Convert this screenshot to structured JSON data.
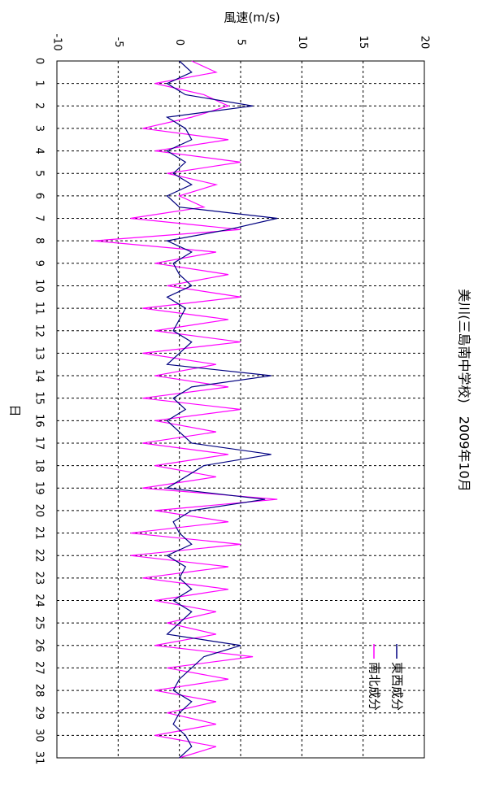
{
  "chart_data": {
    "type": "line",
    "title": "美川(三島南中学校)　2009年10月",
    "x_label": "日",
    "y_label": "風速(m/s)",
    "x": [
      0,
      0.5,
      1,
      1.5,
      2,
      2.5,
      3,
      3.5,
      4,
      4.5,
      5,
      5.5,
      6,
      6.5,
      7,
      7.5,
      8,
      8.5,
      9,
      9.5,
      10,
      10.5,
      11,
      11.5,
      12,
      12.5,
      13,
      13.5,
      14,
      14.5,
      15,
      15.5,
      16,
      16.5,
      17,
      17.5,
      18,
      18.5,
      19,
      19.5,
      20,
      20.5,
      21,
      21.5,
      22,
      22.5,
      23,
      23.5,
      24,
      24.5,
      25,
      25.5,
      26,
      26.5,
      27,
      27.5,
      28,
      28.5,
      29,
      29.5,
      30,
      30.5,
      31
    ],
    "series": [
      {
        "name": "東西成分",
        "color": "#000080",
        "values": [
          0,
          1,
          -1,
          0.5,
          6,
          -1,
          0.5,
          1,
          -1,
          0.5,
          -0.5,
          1,
          -1,
          0,
          8,
          4,
          -1,
          1,
          -0.5,
          0,
          1,
          -1,
          0.5,
          0,
          -0.5,
          1,
          0,
          -1,
          7.5,
          1,
          -0.5,
          0.5,
          -1,
          0,
          1,
          7.5,
          2,
          0.5,
          -1,
          7,
          1,
          -0.5,
          0,
          1,
          -1,
          0.5,
          0,
          1,
          -0.5,
          1,
          0,
          -1,
          5,
          2,
          1,
          0,
          -0.5,
          1,
          0,
          -0.5,
          0.5,
          1,
          0
        ]
      },
      {
        "name": "南北成分",
        "color": "#ff00ff",
        "values": [
          1,
          3,
          -2,
          2,
          4,
          1,
          -3,
          4,
          -2,
          5,
          -1,
          3,
          0,
          2,
          -4,
          5,
          -7,
          3,
          -2,
          4,
          -1,
          5,
          -3,
          4,
          -2,
          5,
          -3,
          3,
          -2,
          4,
          -3,
          5,
          -2,
          3,
          -3,
          4,
          -2,
          3,
          -3,
          8,
          -2,
          4,
          -4,
          5,
          -4,
          4,
          -3,
          4,
          -2,
          3,
          -1,
          3,
          -2,
          6,
          -1,
          4,
          -2,
          3,
          -1,
          3,
          -2,
          3,
          0
        ]
      }
    ],
    "xlim": [
      0,
      31
    ],
    "xticks": [
      0,
      1,
      2,
      3,
      4,
      5,
      6,
      7,
      8,
      9,
      10,
      11,
      12,
      13,
      14,
      15,
      16,
      17,
      18,
      19,
      20,
      21,
      22,
      23,
      24,
      25,
      26,
      27,
      28,
      29,
      30,
      31
    ],
    "ylim": [
      -10,
      20
    ],
    "yticks": [
      -10,
      -5,
      0,
      5,
      10,
      15,
      20
    ],
    "grid": true,
    "legend_position": "lower right"
  }
}
